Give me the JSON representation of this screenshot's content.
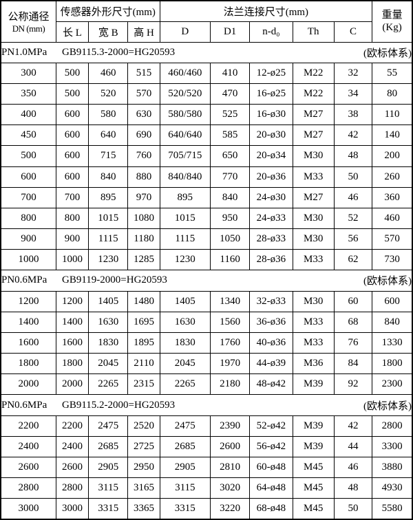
{
  "page": {
    "background": "#ffffff",
    "border_color": "#000000",
    "text_color": "#000000"
  },
  "table": {
    "header": {
      "dn_label_line1": "公称通径",
      "dn_label_line2": "DN (mm)",
      "sensor_group_label": "传感器外形尺寸(mm)",
      "sensor_columns": [
        "长 L",
        "宽 B",
        "高 H"
      ],
      "flange_group_label": "法兰连接尺寸(mm)",
      "flange_columns": [
        "D",
        "D1",
        "n-d₀",
        "Th",
        "C"
      ],
      "weight_label_line1": "重量",
      "weight_label_line2": "(Kg)"
    },
    "sections": [
      {
        "pressure": "PN1.0MPa",
        "standard": "GB9115.3-2000=HG20593",
        "note": "(欧标体系)",
        "rows": [
          [
            "300",
            "500",
            "460",
            "515",
            "460/460",
            "410",
            "12-ø25",
            "M22",
            "32",
            "55"
          ],
          [
            "350",
            "500",
            "520",
            "570",
            "520/520",
            "470",
            "16-ø25",
            "M22",
            "34",
            "80"
          ],
          [
            "400",
            "600",
            "580",
            "630",
            "580/580",
            "525",
            "16-ø30",
            "M27",
            "38",
            "110"
          ],
          [
            "450",
            "600",
            "640",
            "690",
            "640/640",
            "585",
            "20-ø30",
            "M27",
            "42",
            "140"
          ],
          [
            "500",
            "600",
            "715",
            "760",
            "705/715",
            "650",
            "20-ø34",
            "M30",
            "48",
            "200"
          ],
          [
            "600",
            "600",
            "840",
            "880",
            "840/840",
            "770",
            "20-ø36",
            "M33",
            "50",
            "260"
          ],
          [
            "700",
            "700",
            "895",
            "970",
            "895",
            "840",
            "24-ø30",
            "M27",
            "46",
            "360"
          ],
          [
            "800",
            "800",
            "1015",
            "1080",
            "1015",
            "950",
            "24-ø33",
            "M30",
            "52",
            "460"
          ],
          [
            "900",
            "900",
            "1115",
            "1180",
            "1115",
            "1050",
            "28-ø33",
            "M30",
            "56",
            "570"
          ],
          [
            "1000",
            "1000",
            "1230",
            "1285",
            "1230",
            "1160",
            "28-ø36",
            "M33",
            "62",
            "730"
          ]
        ]
      },
      {
        "pressure": "PN0.6MPa",
        "standard": "GB9119-2000=HG20593",
        "note": "(欧标体系)",
        "rows": [
          [
            "1200",
            "1200",
            "1405",
            "1480",
            "1405",
            "1340",
            "32-ø33",
            "M30",
            "60",
            "600"
          ],
          [
            "1400",
            "1400",
            "1630",
            "1695",
            "1630",
            "1560",
            "36-ø36",
            "M33",
            "68",
            "840"
          ],
          [
            "1600",
            "1600",
            "1830",
            "1895",
            "1830",
            "1760",
            "40-ø36",
            "M33",
            "76",
            "1330"
          ],
          [
            "1800",
            "1800",
            "2045",
            "2110",
            "2045",
            "1970",
            "44-ø39",
            "M36",
            "84",
            "1800"
          ],
          [
            "2000",
            "2000",
            "2265",
            "2315",
            "2265",
            "2180",
            "48-ø42",
            "M39",
            "92",
            "2300"
          ]
        ]
      },
      {
        "pressure": "PN0.6MPa",
        "standard": "GB9115.2-2000=HG20593",
        "note": "(欧标体系)",
        "rows": [
          [
            "2200",
            "2200",
            "2475",
            "2520",
            "2475",
            "2390",
            "52-ø42",
            "M39",
            "42",
            "2800"
          ],
          [
            "2400",
            "2400",
            "2685",
            "2725",
            "2685",
            "2600",
            "56-ø42",
            "M39",
            "44",
            "3300"
          ],
          [
            "2600",
            "2600",
            "2905",
            "2950",
            "2905",
            "2810",
            "60-ø48",
            "M45",
            "46",
            "3880"
          ],
          [
            "2800",
            "2800",
            "3115",
            "3165",
            "3115",
            "3020",
            "64-ø48",
            "M45",
            "48",
            "4930"
          ],
          [
            "3000",
            "3000",
            "3315",
            "3365",
            "3315",
            "3220",
            "68-ø48",
            "M45",
            "50",
            "5580"
          ]
        ]
      }
    ]
  }
}
